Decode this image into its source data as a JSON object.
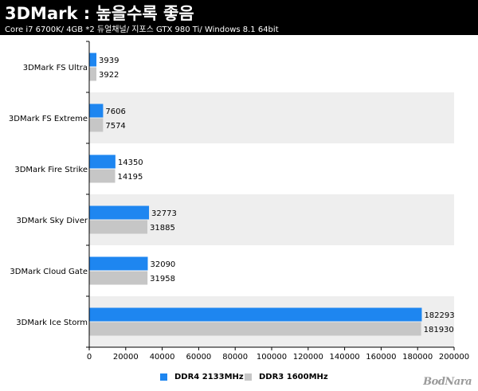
{
  "header": {
    "title": "3DMark : 높을수록 좋음",
    "subtitle": "Core i7 6700K/ 4GB *2 듀얼채널/ 지포스 GTX 980 Ti/ Windows 8.1 64bit"
  },
  "logo": {
    "text": "BodNara"
  },
  "colors": {
    "header_bg": "#000000",
    "ddr4": "#1e86f0",
    "ddr3": "#c6c6c6",
    "band": "#eeeeee"
  },
  "chart_data": {
    "type": "bar",
    "orientation": "horizontal",
    "categories": [
      "3DMark FS Ultra",
      "3DMark FS Extreme",
      "3DMark Fire Strike",
      "3DMark Sky Diver",
      "3DMark Cloud Gate",
      "3DMark Ice Storm"
    ],
    "series": [
      {
        "name": "DDR4 2133MHz",
        "color": "#1e86f0",
        "values": [
          3939,
          7606,
          14350,
          32773,
          32090,
          182293
        ]
      },
      {
        "name": "DDR3 1600MHz",
        "color": "#c6c6c6",
        "values": [
          3922,
          7574,
          14195,
          31885,
          31958,
          181930
        ]
      }
    ],
    "xlim": [
      0,
      200000
    ],
    "xticks": [
      "0",
      "20000",
      "40000",
      "60000",
      "80000",
      "100000",
      "120000",
      "140000",
      "160000",
      "180000",
      "200000"
    ],
    "xlabel": "",
    "ylabel": "",
    "grid": false,
    "alternating_bands": true,
    "data_labels": true,
    "legend_position": "bottom-center"
  }
}
